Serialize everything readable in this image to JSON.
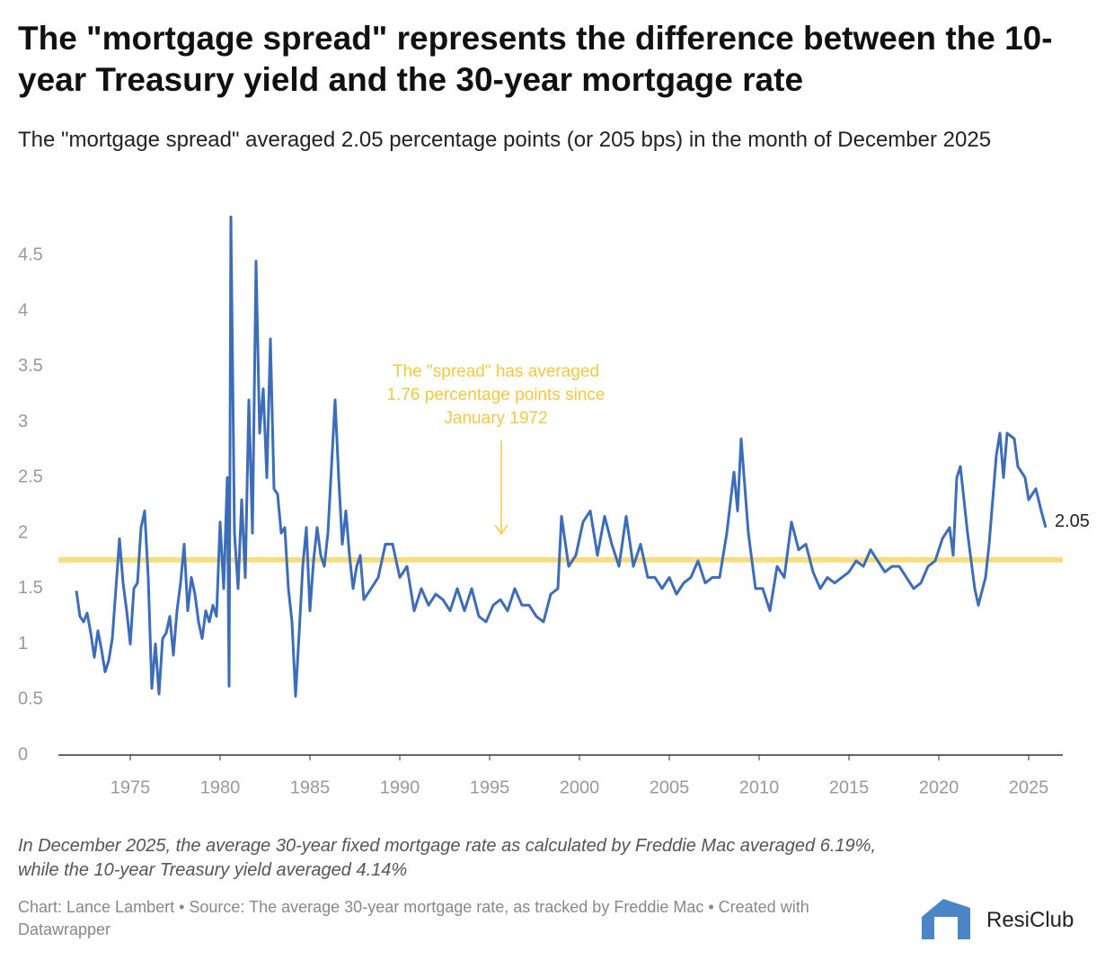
{
  "chart_data": {
    "type": "line",
    "title": "The \"mortgage spread\" represents the difference between the 10-year Treasury yield and the 30-year mortgage rate",
    "subtitle": "The \"mortgage spread\" averaged 2.05 percentage points (or 205 bps) in the month of December 2025",
    "note": "In December 2025, the average 30-year fixed mortgage rate as calculated by Freddie Mac averaged 6.19%, while the 10-year Treasury yield averaged 4.14%",
    "credits": "Chart: Lance Lambert • Source: The average 30-year mortgage rate, as tracked by Freddie Mac • Created with Datawrapper",
    "logo": "ResiClub",
    "annotation": {
      "lines": [
        "The \"spread\" has averaged",
        "1.76 percentage points since",
        "January 1972"
      ],
      "color": "#f5c842"
    },
    "reference_line": {
      "value": 1.76,
      "color": "#f9dc7e"
    },
    "xlim": [
      1971,
      2026.9
    ],
    "xticks": [
      1975,
      1980,
      1985,
      1990,
      1995,
      2000,
      2005,
      2010,
      2015,
      2020,
      2025
    ],
    "ylim": [
      0,
      4.9
    ],
    "yticks": [
      0,
      0.5,
      1,
      1.5,
      2,
      2.5,
      3,
      3.5,
      4,
      4.5
    ],
    "series": [
      {
        "name": "Mortgage spread",
        "color": "#3d6cb9",
        "x": [
          1972.0,
          1972.2,
          1972.4,
          1972.6,
          1972.8,
          1973.0,
          1973.2,
          1973.4,
          1973.6,
          1973.8,
          1974.0,
          1974.2,
          1974.4,
          1974.6,
          1974.8,
          1975.0,
          1975.2,
          1975.4,
          1975.6,
          1975.8,
          1976.0,
          1976.2,
          1976.4,
          1976.6,
          1976.8,
          1977.0,
          1977.2,
          1977.4,
          1977.6,
          1977.8,
          1978.0,
          1978.2,
          1978.4,
          1978.6,
          1978.8,
          1979.0,
          1979.2,
          1979.4,
          1979.6,
          1979.8,
          1980.0,
          1980.2,
          1980.4,
          1980.5,
          1980.6,
          1980.8,
          1981.0,
          1981.2,
          1981.4,
          1981.6,
          1981.8,
          1982.0,
          1982.2,
          1982.4,
          1982.6,
          1982.8,
          1983.0,
          1983.2,
          1983.4,
          1983.6,
          1983.8,
          1984.0,
          1984.2,
          1984.4,
          1984.6,
          1984.8,
          1985.0,
          1985.2,
          1985.4,
          1985.6,
          1985.8,
          1986.0,
          1986.2,
          1986.4,
          1986.6,
          1986.8,
          1987.0,
          1987.2,
          1987.4,
          1987.6,
          1987.8,
          1988.0,
          1988.4,
          1988.8,
          1989.2,
          1989.6,
          1990.0,
          1990.4,
          1990.8,
          1991.2,
          1991.6,
          1992.0,
          1992.4,
          1992.8,
          1993.2,
          1993.6,
          1994.0,
          1994.4,
          1994.8,
          1995.2,
          1995.6,
          1996.0,
          1996.4,
          1996.8,
          1997.2,
          1997.6,
          1998.0,
          1998.4,
          1998.8,
          1999.0,
          1999.4,
          1999.8,
          2000.2,
          2000.6,
          2001.0,
          2001.4,
          2001.8,
          2002.2,
          2002.6,
          2003.0,
          2003.4,
          2003.8,
          2004.2,
          2004.6,
          2005.0,
          2005.4,
          2005.8,
          2006.2,
          2006.6,
          2007.0,
          2007.4,
          2007.8,
          2008.2,
          2008.6,
          2008.8,
          2009.0,
          2009.4,
          2009.8,
          2010.2,
          2010.6,
          2011.0,
          2011.4,
          2011.8,
          2012.2,
          2012.6,
          2013.0,
          2013.4,
          2013.8,
          2014.2,
          2014.6,
          2015.0,
          2015.4,
          2015.8,
          2016.2,
          2016.6,
          2017.0,
          2017.4,
          2017.8,
          2018.2,
          2018.6,
          2019.0,
          2019.4,
          2019.8,
          2020.2,
          2020.6,
          2020.8,
          2021.0,
          2021.2,
          2021.6,
          2022.0,
          2022.2,
          2022.6,
          2022.8,
          2023.2,
          2023.4,
          2023.6,
          2023.8,
          2024.2,
          2024.4,
          2024.8,
          2025.0,
          2025.4,
          2025.7,
          2025.95
        ],
        "values": [
          1.48,
          1.25,
          1.2,
          1.28,
          1.1,
          0.88,
          1.12,
          0.95,
          0.75,
          0.85,
          1.05,
          1.5,
          1.95,
          1.55,
          1.3,
          1.0,
          1.5,
          1.55,
          2.05,
          2.2,
          1.6,
          0.6,
          1.0,
          0.55,
          1.05,
          1.1,
          1.25,
          0.9,
          1.3,
          1.55,
          1.9,
          1.3,
          1.6,
          1.45,
          1.2,
          1.05,
          1.3,
          1.2,
          1.35,
          1.25,
          2.1,
          1.5,
          2.5,
          0.62,
          4.85,
          2.0,
          1.5,
          2.3,
          1.6,
          3.2,
          2.0,
          4.45,
          2.9,
          3.3,
          2.5,
          3.75,
          2.4,
          2.35,
          2.0,
          2.05,
          1.5,
          1.2,
          0.53,
          1.1,
          1.7,
          2.05,
          1.3,
          1.75,
          2.05,
          1.8,
          1.7,
          2.0,
          2.6,
          3.2,
          2.5,
          1.9,
          2.2,
          1.8,
          1.5,
          1.7,
          1.8,
          1.4,
          1.5,
          1.6,
          1.9,
          1.9,
          1.6,
          1.7,
          1.3,
          1.5,
          1.35,
          1.45,
          1.4,
          1.3,
          1.5,
          1.3,
          1.5,
          1.25,
          1.2,
          1.35,
          1.4,
          1.3,
          1.5,
          1.35,
          1.35,
          1.25,
          1.2,
          1.45,
          1.5,
          2.15,
          1.7,
          1.8,
          2.1,
          2.2,
          1.8,
          2.15,
          1.9,
          1.7,
          2.15,
          1.7,
          1.9,
          1.6,
          1.6,
          1.5,
          1.6,
          1.45,
          1.55,
          1.6,
          1.75,
          1.55,
          1.6,
          1.6,
          2.0,
          2.55,
          2.2,
          2.85,
          2.0,
          1.5,
          1.5,
          1.3,
          1.7,
          1.6,
          2.1,
          1.85,
          1.9,
          1.65,
          1.5,
          1.6,
          1.55,
          1.6,
          1.65,
          1.75,
          1.7,
          1.85,
          1.75,
          1.65,
          1.7,
          1.7,
          1.6,
          1.5,
          1.55,
          1.7,
          1.75,
          1.95,
          2.05,
          1.8,
          2.5,
          2.6,
          2.0,
          1.5,
          1.35,
          1.6,
          1.9,
          2.7,
          2.9,
          2.5,
          2.9,
          2.85,
          2.6,
          2.5,
          2.3,
          2.4,
          2.2,
          2.05
        ]
      }
    ]
  }
}
